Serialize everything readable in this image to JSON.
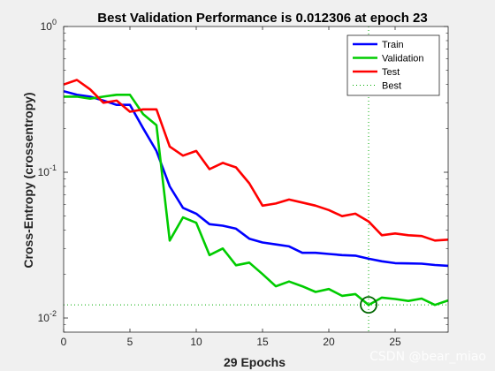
{
  "chart_data": {
    "type": "line",
    "title": "Best Validation Performance is 0.012306 at epoch 23",
    "xlabel": "29 Epochs",
    "ylabel": "Cross-Entropy  (crossentropy)",
    "xlim": [
      0,
      29
    ],
    "ylim": [
      0.008,
      1
    ],
    "yscale": "log",
    "xticks": [
      0,
      5,
      10,
      15,
      20,
      25
    ],
    "yticks": [
      {
        "value": 1,
        "base": "10",
        "exp": "0"
      },
      {
        "value": 0.1,
        "base": "10",
        "exp": "-1"
      },
      {
        "value": 0.01,
        "base": "10",
        "exp": "-2"
      }
    ],
    "x": [
      0,
      1,
      2,
      3,
      4,
      5,
      6,
      7,
      8,
      9,
      10,
      11,
      12,
      13,
      14,
      15,
      16,
      17,
      18,
      19,
      20,
      21,
      22,
      23,
      24,
      25,
      26,
      27,
      28,
      29
    ],
    "series": [
      {
        "name": "Train",
        "color": "#0000ff",
        "values": [
          0.36,
          0.34,
          0.33,
          0.31,
          0.29,
          0.29,
          0.2,
          0.14,
          0.08,
          0.057,
          0.052,
          0.044,
          0.043,
          0.041,
          0.035,
          0.033,
          0.032,
          0.031,
          0.028,
          0.028,
          0.0275,
          0.027,
          0.0268,
          0.0255,
          0.0245,
          0.0238,
          0.0237,
          0.0236,
          0.0231,
          0.0228
        ]
      },
      {
        "name": "Validation",
        "color": "#00cc00",
        "values": [
          0.33,
          0.33,
          0.32,
          0.33,
          0.34,
          0.34,
          0.25,
          0.21,
          0.034,
          0.049,
          0.045,
          0.027,
          0.03,
          0.023,
          0.024,
          0.02,
          0.0165,
          0.0178,
          0.0165,
          0.0151,
          0.0158,
          0.0142,
          0.0146,
          0.0123,
          0.0138,
          0.0135,
          0.0131,
          0.0136,
          0.0123,
          0.0132
        ]
      },
      {
        "name": "Test",
        "color": "#ff0000",
        "values": [
          0.4,
          0.43,
          0.37,
          0.3,
          0.31,
          0.26,
          0.27,
          0.27,
          0.15,
          0.13,
          0.14,
          0.105,
          0.116,
          0.108,
          0.084,
          0.059,
          0.061,
          0.065,
          0.062,
          0.059,
          0.055,
          0.05,
          0.052,
          0.046,
          0.037,
          0.038,
          0.037,
          0.0365,
          0.034,
          0.0345
        ]
      }
    ],
    "best": {
      "name": "Best",
      "epoch": 23,
      "value": 0.012306,
      "color": "#00aa00"
    },
    "legend": {
      "position": "top-right",
      "entries": [
        "Train",
        "Validation",
        "Test",
        "Best"
      ]
    },
    "grid": false
  },
  "watermark": "CSDN @bear_miao"
}
